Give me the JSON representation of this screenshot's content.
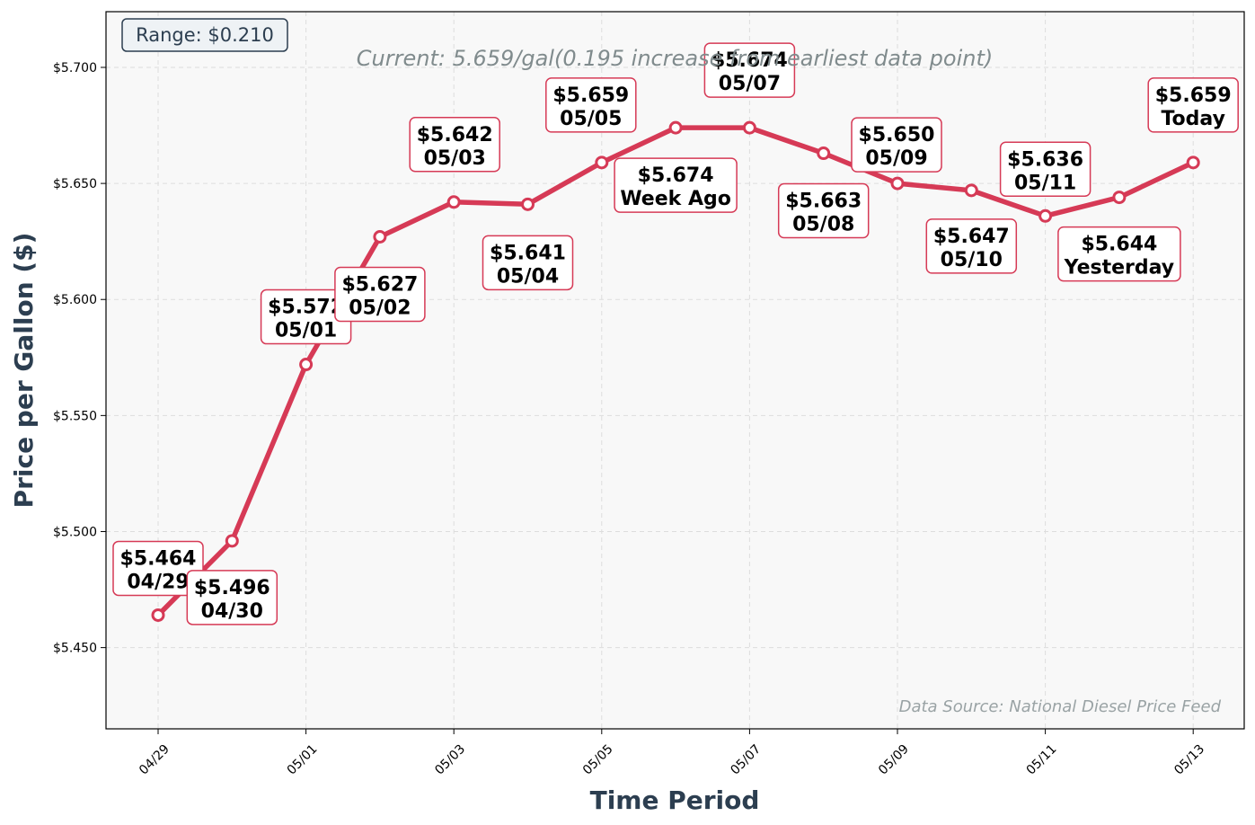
{
  "chart_data": {
    "type": "line",
    "subtitle": "Current: 5.659/gal(0.195 increase from earliest data point)",
    "xlabel": "Time Period",
    "ylabel": "Price per Gallon ($)",
    "range_label": "Range: $0.210",
    "source": "Data Source: National Diesel Price Feed",
    "ylim": [
      5.415,
      5.724
    ],
    "y_ticks": [
      "$5.450",
      "$5.500",
      "$5.550",
      "$5.600",
      "$5.650",
      "$5.700"
    ],
    "y_tick_values": [
      5.45,
      5.5,
      5.55,
      5.6,
      5.65,
      5.7
    ],
    "x_ticks": [
      "04/29",
      "05/01",
      "05/03",
      "05/05",
      "05/07",
      "05/09",
      "05/11",
      "05/13"
    ],
    "grid": true,
    "colors": {
      "line": "#d63a56",
      "plot_bg": "#f8f8f8"
    },
    "series": [
      {
        "points": [
          {
            "x": "04/29",
            "y": 5.464,
            "label_price": "$5.464",
            "label_date": "04/29"
          },
          {
            "x": "04/30",
            "y": 5.496,
            "label_price": "$5.496",
            "label_date": "04/30"
          },
          {
            "x": "05/01",
            "y": 5.572,
            "label_price": "$5.572",
            "label_date": "05/01"
          },
          {
            "x": "05/02",
            "y": 5.627,
            "label_price": "$5.627",
            "label_date": "05/02"
          },
          {
            "x": "05/03",
            "y": 5.642,
            "label_price": "$5.642",
            "label_date": "05/03"
          },
          {
            "x": "05/04",
            "y": 5.641,
            "label_price": "$5.641",
            "label_date": "05/04"
          },
          {
            "x": "05/05",
            "y": 5.659,
            "label_price": "$5.659",
            "label_date": "05/05"
          },
          {
            "x": "05/06",
            "y": 5.674,
            "label_price": "$5.674",
            "label_date": "Week Ago"
          },
          {
            "x": "05/07",
            "y": 5.674,
            "label_price": "$5.674",
            "label_date": "05/07"
          },
          {
            "x": "05/08",
            "y": 5.663,
            "label_price": "$5.663",
            "label_date": "05/08"
          },
          {
            "x": "05/09",
            "y": 5.65,
            "label_price": "$5.650",
            "label_date": "05/09"
          },
          {
            "x": "05/10",
            "y": 5.647,
            "label_price": "$5.647",
            "label_date": "05/10"
          },
          {
            "x": "05/11",
            "y": 5.636,
            "label_price": "$5.636",
            "label_date": "05/11"
          },
          {
            "x": "05/12",
            "y": 5.644,
            "label_price": "$5.644",
            "label_date": "Yesterday"
          },
          {
            "x": "05/13",
            "y": 5.659,
            "label_price": "$5.659",
            "label_date": "Today"
          }
        ]
      }
    ]
  }
}
